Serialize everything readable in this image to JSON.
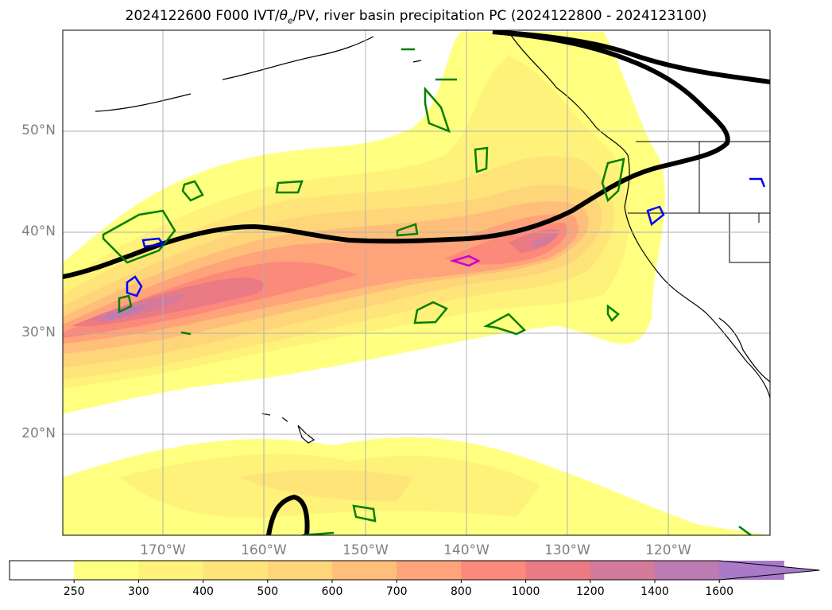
{
  "title": "2024122600 F000 IVT/θe/PV, river basin precipitation PC (2024122800 - 2024123100)",
  "title_parts": {
    "prefix": "2024122600 F000 IVT/",
    "theta": "θ",
    "sub": "e",
    "suffix": "/PV, river basin precipitation PC (2024122800 - 2024123100)"
  },
  "map": {
    "lat_labels": [
      "50°N",
      "40°N",
      "30°N",
      "20°N"
    ],
    "lon_labels": [
      "170°W",
      "160°W",
      "150°W",
      "140°W",
      "130°W",
      "120°W"
    ],
    "extent": {
      "lon_min": -180,
      "lon_max": -110,
      "lat_min": 10,
      "lat_max": 60
    }
  },
  "colorbar": {
    "ticks": [
      "250",
      "300",
      "400",
      "500",
      "600",
      "700",
      "800",
      "1000",
      "1200",
      "1400",
      "1600"
    ],
    "colors": [
      "#ffffff",
      "#ffff80",
      "#fff27a",
      "#ffe47a",
      "#ffd57a",
      "#ffbf7a",
      "#ffa37a",
      "#fb8a7a",
      "#ea7a84",
      "#d47a9a",
      "#be7ab2",
      "#a87ac8"
    ],
    "extend": "max"
  },
  "legend_colors": {
    "ivt_low": "#ffff80",
    "ivt_high": "#a87ac8",
    "pv_contour": "#000000",
    "green_contour": "#008000",
    "blue_contour": "#0000ff",
    "magenta_contour": "#cc00cc"
  }
}
